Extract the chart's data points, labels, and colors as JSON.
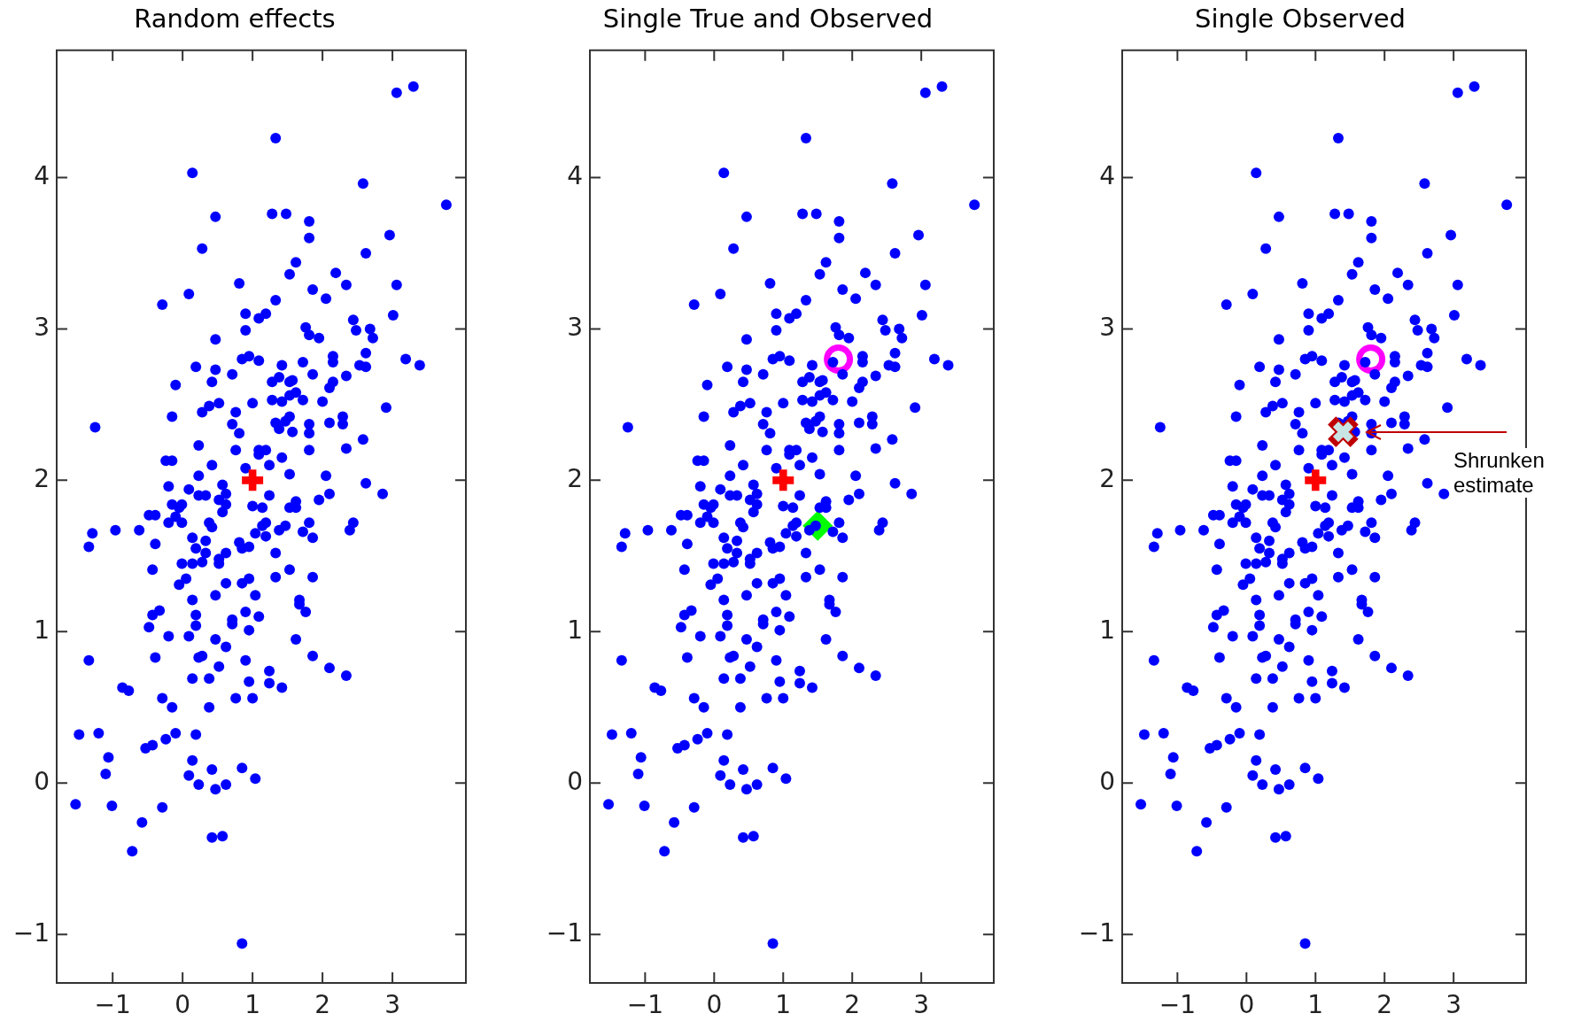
{
  "chart_data": [
    {
      "type": "scatter",
      "title": "Random effects",
      "xlim": [
        -1.8,
        4.05
      ],
      "ylim": [
        -1.32,
        4.84
      ],
      "xticks": [
        -1,
        0,
        1,
        2,
        3
      ],
      "yticks": [
        -1,
        0,
        1,
        2,
        3,
        4
      ],
      "series": [
        {
          "color": "#0000ff",
          "marker": "circle",
          "x": [
            3.3,
            3.06,
            1.33,
            0.14,
            2.58,
            3.77,
            0.47,
            1.28,
            1.48,
            1.81,
            1.81,
            2.96,
            0.28,
            2.62,
            1.62,
            1.53,
            2.19,
            0.81,
            2.34,
            3.06,
            0.09,
            1.86,
            2.05,
            -0.29,
            1.33,
            0.9,
            1.19,
            1.09,
            3.01,
            2.44,
            1.76,
            0.9,
            2.48,
            2.68,
            0.47,
            1.81,
            1.95,
            2.72,
            2.62,
            2.15,
            2.15,
            0.95,
            0.85,
            1.09,
            1.42,
            1.72,
            3.19,
            3.39,
            2.53,
            2.62,
            0.19,
            0.47,
            0.71,
            1.86,
            2.34,
            -0.1,
            0.42,
            1.28,
            1.38,
            1.53,
            1.57,
            2.15,
            2.1,
            1.53,
            1.62,
            1.28,
            1.42,
            1.72,
            2.0,
            0.38,
            0.52,
            1.0,
            0.28,
            0.76,
            2.91,
            -0.15,
            1.53,
            2.29,
            -1.25,
            0.71,
            1.33,
            1.47,
            1.38,
            1.57,
            1.81,
            1.81,
            2.1,
            2.29,
            0.81,
            2.58,
            0.23,
            0.76,
            1.09,
            1.19,
            1.09,
            1.81,
            2.34,
            1.42,
            -0.24,
            -0.15,
            0.42,
            0.9,
            1.24,
            0.23,
            1.53,
            2.05,
            2.62,
            -0.2,
            0.09,
            0.57,
            0.62,
            0.23,
            0.33,
            1.24,
            2.1,
            2.86,
            0.52,
            0.62,
            -0.15,
            -0.01,
            -0.05,
            1.95,
            1.62,
            1.0,
            1.14,
            1.53,
            1.62,
            0.57,
            -0.48,
            -0.39,
            -0.1,
            -0.2,
            -0.01,
            0.38,
            0.42,
            1.14,
            1.19,
            1.38,
            1.47,
            1.81,
            2.44,
            2.39,
            -0.96,
            -0.62,
            -1.29,
            -1.34,
            -0.39,
            0.14,
            0.33,
            1.04,
            1.19,
            1.72,
            1.86,
            0.19,
            0.33,
            0.62,
            0.81,
            0.85,
            0.95,
            1.33,
            -0.01,
            0.14,
            0.28,
            0.52,
            0.52,
            -0.43,
            1.53,
            0.05,
            -0.05,
            0.62,
            0.85,
            0.95,
            1.33,
            1.86,
            0.14,
            0.47,
            1.04,
            1.67,
            1.67,
            -0.33,
            -0.43,
            0.19,
            0.9,
            1.09,
            1.76,
            0.71,
            0.71,
            -0.48,
            0.19,
            0.95,
            -0.2,
            0.09,
            0.47,
            1.62,
            0.62,
            -1.34,
            -0.39,
            0.23,
            0.28,
            0.9,
            1.86,
            0.52,
            1.24,
            2.1,
            2.34,
            0.14,
            0.38,
            0.95,
            1.24,
            1.42,
            -0.86,
            -0.77,
            -0.29,
            -0.15,
            0.38,
            0.76,
            1.0,
            -1.48,
            -1.2,
            -0.1,
            0.19,
            -0.24,
            -0.53,
            -0.43,
            -1.06,
            0.14,
            0.42,
            0.85,
            -1.1,
            0.09,
            1.04,
            0.23,
            0.62,
            0.47,
            -1.53,
            -1.01,
            -0.29,
            -0.58,
            0.42,
            0.57,
            -0.72,
            0.85
          ],
          "values": [
            4.6,
            4.56,
            4.26,
            4.03,
            3.96,
            3.82,
            3.74,
            3.76,
            3.76,
            3.71,
            3.6,
            3.62,
            3.53,
            3.5,
            3.44,
            3.36,
            3.37,
            3.3,
            3.29,
            3.29,
            3.23,
            3.26,
            3.2,
            3.16,
            3.19,
            3.1,
            3.1,
            3.07,
            3.09,
            3.06,
            3.01,
            2.99,
            2.99,
            3.0,
            2.93,
            2.96,
            2.94,
            2.94,
            2.84,
            2.82,
            2.78,
            2.82,
            2.8,
            2.79,
            2.76,
            2.78,
            2.8,
            2.76,
            2.76,
            2.75,
            2.75,
            2.73,
            2.7,
            2.7,
            2.69,
            2.63,
            2.65,
            2.65,
            2.68,
            2.65,
            2.66,
            2.65,
            2.61,
            2.56,
            2.58,
            2.53,
            2.52,
            2.53,
            2.52,
            2.49,
            2.51,
            2.51,
            2.45,
            2.45,
            2.48,
            2.42,
            2.42,
            2.42,
            2.35,
            2.37,
            2.38,
            2.39,
            2.34,
            2.32,
            2.37,
            2.31,
            2.38,
            2.37,
            2.31,
            2.27,
            2.23,
            2.2,
            2.2,
            2.2,
            2.17,
            2.2,
            2.21,
            2.15,
            2.13,
            2.13,
            2.1,
            2.08,
            2.1,
            2.03,
            2.04,
            2.03,
            1.98,
            1.96,
            1.94,
            1.97,
            1.91,
            1.9,
            1.9,
            1.9,
            1.91,
            1.91,
            1.87,
            1.84,
            1.84,
            1.84,
            1.82,
            1.87,
            1.86,
            1.83,
            1.82,
            1.82,
            1.82,
            1.79,
            1.77,
            1.77,
            1.76,
            1.72,
            1.72,
            1.72,
            1.69,
            1.7,
            1.72,
            1.67,
            1.7,
            1.72,
            1.72,
            1.67,
            1.67,
            1.67,
            1.65,
            1.56,
            1.58,
            1.62,
            1.6,
            1.65,
            1.63,
            1.66,
            1.62,
            1.55,
            1.52,
            1.52,
            1.59,
            1.55,
            1.56,
            1.52,
            1.45,
            1.45,
            1.46,
            1.48,
            1.45,
            1.41,
            1.41,
            1.35,
            1.31,
            1.32,
            1.32,
            1.35,
            1.36,
            1.36,
            1.21,
            1.24,
            1.24,
            1.21,
            1.18,
            1.14,
            1.11,
            1.11,
            1.13,
            1.1,
            1.13,
            1.08,
            1.05,
            1.03,
            1.04,
            1.01,
            0.97,
            0.97,
            0.95,
            0.95,
            0.9,
            0.81,
            0.83,
            0.83,
            0.84,
            0.81,
            0.84,
            0.77,
            0.74,
            0.76,
            0.71,
            0.69,
            0.69,
            0.67,
            0.66,
            0.63,
            0.63,
            0.61,
            0.56,
            0.5,
            0.5,
            0.56,
            0.56,
            0.32,
            0.33,
            0.33,
            0.32,
            0.29,
            0.23,
            0.25,
            0.17,
            0.15,
            0.09,
            0.1,
            0.06,
            0.05,
            0.03,
            -0.01,
            -0.01,
            -0.04,
            -0.14,
            -0.15,
            -0.16,
            -0.26,
            -0.36,
            -0.35,
            -0.45,
            -1.06
          ]
        },
        {
          "color": "#ff0000",
          "marker": "cross",
          "x": [
            1.0
          ],
          "values": [
            2.0
          ]
        }
      ]
    },
    {
      "type": "scatter",
      "title": "Single True and Observed",
      "xlim": [
        -1.8,
        4.05
      ],
      "ylim": [
        -1.32,
        4.84
      ],
      "xticks": [
        -1,
        0,
        1,
        2,
        3
      ],
      "yticks": [
        -1,
        0,
        1,
        2,
        3,
        4
      ],
      "series": [
        {
          "color": "#0000ff",
          "marker": "circle",
          "x": [
            3.3,
            3.06,
            1.33,
            0.14,
            2.58,
            3.77,
            0.47,
            1.28,
            1.48,
            1.81,
            1.81,
            2.96,
            0.28,
            2.62,
            1.62,
            1.53,
            2.19,
            0.81,
            2.34,
            3.06,
            0.09,
            1.86,
            2.05,
            -0.29,
            1.33,
            0.9,
            1.19,
            1.09,
            3.01,
            2.44,
            1.76,
            0.9,
            2.48,
            2.68,
            0.47,
            1.81,
            1.95,
            2.72,
            2.62,
            2.15,
            2.15,
            0.95,
            0.85,
            1.09,
            1.42,
            1.72,
            3.19,
            3.39,
            2.53,
            2.62,
            0.19,
            0.47,
            0.71,
            1.86,
            2.34,
            -0.1,
            0.42,
            1.28,
            1.38,
            1.53,
            1.57,
            2.15,
            2.1,
            1.53,
            1.62,
            1.28,
            1.42,
            1.72,
            2.0,
            0.38,
            0.52,
            1.0,
            0.28,
            0.76,
            2.91,
            -0.15,
            1.53,
            2.29,
            -1.25,
            0.71,
            1.33,
            1.47,
            1.38,
            1.57,
            1.81,
            1.81,
            2.1,
            2.29,
            0.81,
            2.58,
            0.23,
            0.76,
            1.09,
            1.19,
            1.09,
            1.81,
            2.34,
            1.42,
            -0.24,
            -0.15,
            0.42,
            0.9,
            1.24,
            0.23,
            1.53,
            2.05,
            2.62,
            -0.2,
            0.09,
            0.57,
            0.62,
            0.23,
            0.33,
            1.24,
            2.1,
            2.86,
            0.52,
            0.62,
            -0.15,
            -0.01,
            -0.05,
            1.95,
            1.62,
            1.0,
            1.14,
            1.53,
            1.62,
            0.57,
            -0.48,
            -0.39,
            -0.1,
            -0.2,
            -0.01,
            0.38,
            0.42,
            1.14,
            1.19,
            1.38,
            1.47,
            1.81,
            2.44,
            2.39,
            -0.96,
            -0.62,
            -1.29,
            -1.34,
            -0.39,
            0.14,
            0.33,
            1.04,
            1.19,
            1.72,
            1.86,
            0.19,
            0.33,
            0.62,
            0.81,
            0.85,
            0.95,
            1.33,
            -0.01,
            0.14,
            0.28,
            0.52,
            0.52,
            -0.43,
            1.53,
            0.05,
            -0.05,
            0.62,
            0.85,
            0.95,
            1.33,
            1.86,
            0.14,
            0.47,
            1.04,
            1.67,
            1.67,
            -0.33,
            -0.43,
            0.19,
            0.9,
            1.09,
            1.76,
            0.71,
            0.71,
            -0.48,
            0.19,
            0.95,
            -0.2,
            0.09,
            0.47,
            1.62,
            0.62,
            -1.34,
            -0.39,
            0.23,
            0.28,
            0.9,
            1.86,
            0.52,
            1.24,
            2.1,
            2.34,
            0.14,
            0.38,
            0.95,
            1.24,
            1.42,
            -0.86,
            -0.77,
            -0.29,
            -0.15,
            0.38,
            0.76,
            1.0,
            -1.48,
            -1.2,
            -0.1,
            0.19,
            -0.24,
            -0.53,
            -0.43,
            -1.06,
            0.14,
            0.42,
            0.85,
            -1.1,
            0.09,
            1.04,
            0.23,
            0.62,
            0.47,
            -1.53,
            -1.01,
            -0.29,
            -0.58,
            0.42,
            0.57,
            -0.72,
            0.85
          ],
          "values": [
            4.6,
            4.56,
            4.26,
            4.03,
            3.96,
            3.82,
            3.74,
            3.76,
            3.76,
            3.71,
            3.6,
            3.62,
            3.53,
            3.5,
            3.44,
            3.36,
            3.37,
            3.3,
            3.29,
            3.29,
            3.23,
            3.26,
            3.2,
            3.16,
            3.19,
            3.1,
            3.1,
            3.07,
            3.09,
            3.06,
            3.01,
            2.99,
            2.99,
            3.0,
            2.93,
            2.96,
            2.94,
            2.94,
            2.84,
            2.82,
            2.78,
            2.82,
            2.8,
            2.79,
            2.76,
            2.78,
            2.8,
            2.76,
            2.76,
            2.75,
            2.75,
            2.73,
            2.7,
            2.7,
            2.69,
            2.63,
            2.65,
            2.65,
            2.68,
            2.65,
            2.66,
            2.65,
            2.61,
            2.56,
            2.58,
            2.53,
            2.52,
            2.53,
            2.52,
            2.49,
            2.51,
            2.51,
            2.45,
            2.45,
            2.48,
            2.42,
            2.42,
            2.42,
            2.35,
            2.37,
            2.38,
            2.39,
            2.34,
            2.32,
            2.37,
            2.31,
            2.38,
            2.37,
            2.31,
            2.27,
            2.23,
            2.2,
            2.2,
            2.2,
            2.17,
            2.2,
            2.21,
            2.15,
            2.13,
            2.13,
            2.1,
            2.08,
            2.1,
            2.03,
            2.04,
            2.03,
            1.98,
            1.96,
            1.94,
            1.97,
            1.91,
            1.9,
            1.9,
            1.9,
            1.91,
            1.91,
            1.87,
            1.84,
            1.84,
            1.84,
            1.82,
            1.87,
            1.86,
            1.83,
            1.82,
            1.82,
            1.82,
            1.79,
            1.77,
            1.77,
            1.76,
            1.72,
            1.72,
            1.72,
            1.69,
            1.7,
            1.72,
            1.67,
            1.7,
            1.72,
            1.72,
            1.67,
            1.67,
            1.67,
            1.65,
            1.56,
            1.58,
            1.62,
            1.6,
            1.65,
            1.63,
            1.66,
            1.62,
            1.55,
            1.52,
            1.52,
            1.59,
            1.55,
            1.56,
            1.52,
            1.45,
            1.45,
            1.46,
            1.48,
            1.45,
            1.41,
            1.41,
            1.35,
            1.31,
            1.32,
            1.32,
            1.35,
            1.36,
            1.36,
            1.21,
            1.24,
            1.24,
            1.21,
            1.18,
            1.14,
            1.11,
            1.11,
            1.13,
            1.1,
            1.13,
            1.08,
            1.05,
            1.03,
            1.04,
            1.01,
            0.97,
            0.97,
            0.95,
            0.95,
            0.9,
            0.81,
            0.83,
            0.83,
            0.84,
            0.81,
            0.84,
            0.77,
            0.74,
            0.76,
            0.71,
            0.69,
            0.69,
            0.67,
            0.66,
            0.63,
            0.63,
            0.61,
            0.56,
            0.5,
            0.5,
            0.56,
            0.56,
            0.32,
            0.33,
            0.33,
            0.32,
            0.29,
            0.23,
            0.25,
            0.17,
            0.15,
            0.09,
            0.1,
            0.06,
            0.05,
            0.03,
            -0.01,
            -0.01,
            -0.04,
            -0.14,
            -0.15,
            -0.16,
            -0.26,
            -0.36,
            -0.35,
            -0.45,
            -1.06
          ]
        },
        {
          "color": "#ff0000",
          "marker": "cross",
          "x": [
            1.0
          ],
          "values": [
            2.0
          ]
        },
        {
          "color": "#ff00ff",
          "marker": "circle",
          "x": [
            1.8
          ],
          "values": [
            2.8
          ]
        },
        {
          "color": "#00ff00",
          "marker": "diamond",
          "x": [
            1.5
          ],
          "values": [
            1.7
          ]
        }
      ]
    },
    {
      "type": "scatter",
      "title": "Single Observed",
      "xlim": [
        -1.8,
        4.05
      ],
      "ylim": [
        -1.32,
        4.84
      ],
      "xticks": [
        -1,
        0,
        1,
        2,
        3
      ],
      "yticks": [
        -1,
        0,
        1,
        2,
        3,
        4
      ],
      "annotations": [
        {
          "text": "Shrunken estimate",
          "x": 1.74,
          "y": 2.32
        }
      ],
      "series": [
        {
          "color": "#0000ff",
          "marker": "circle",
          "x": [
            3.3,
            3.06,
            1.33,
            0.14,
            2.58,
            3.77,
            0.47,
            1.28,
            1.48,
            1.81,
            1.81,
            2.96,
            0.28,
            2.62,
            1.62,
            1.53,
            2.19,
            0.81,
            2.34,
            3.06,
            0.09,
            1.86,
            2.05,
            -0.29,
            1.33,
            0.9,
            1.19,
            1.09,
            3.01,
            2.44,
            1.76,
            0.9,
            2.48,
            2.68,
            0.47,
            1.81,
            1.95,
            2.72,
            2.62,
            2.15,
            2.15,
            0.95,
            0.85,
            1.09,
            1.42,
            1.72,
            3.19,
            3.39,
            2.53,
            2.62,
            0.19,
            0.47,
            0.71,
            1.86,
            2.34,
            -0.1,
            0.42,
            1.28,
            1.38,
            1.53,
            1.57,
            2.15,
            2.1,
            1.53,
            1.62,
            1.28,
            1.42,
            1.72,
            2.0,
            0.38,
            0.52,
            1.0,
            0.28,
            0.76,
            2.91,
            -0.15,
            1.53,
            2.29,
            -1.25,
            0.71,
            1.33,
            1.47,
            null,
            1.57,
            1.81,
            1.81,
            2.1,
            2.29,
            0.81,
            2.58,
            0.23,
            0.76,
            1.09,
            1.19,
            1.09,
            1.81,
            2.34,
            1.42,
            -0.24,
            -0.15,
            0.42,
            0.9,
            1.24,
            0.23,
            1.53,
            2.05,
            2.62,
            -0.2,
            0.09,
            0.57,
            0.62,
            0.23,
            0.33,
            1.24,
            2.1,
            2.86,
            0.52,
            0.62,
            -0.15,
            -0.01,
            -0.05,
            1.95,
            1.62,
            1.0,
            1.14,
            1.53,
            1.62,
            0.57,
            -0.48,
            -0.39,
            -0.1,
            -0.2,
            -0.01,
            0.38,
            0.42,
            1.14,
            1.19,
            1.38,
            1.47,
            1.81,
            2.44,
            2.39,
            -0.96,
            -0.62,
            -1.29,
            -1.34,
            -0.39,
            0.14,
            0.33,
            1.04,
            1.19,
            1.72,
            1.86,
            0.19,
            0.33,
            0.62,
            0.81,
            0.85,
            0.95,
            1.33,
            -0.01,
            0.14,
            0.28,
            0.52,
            0.52,
            -0.43,
            1.53,
            0.05,
            -0.05,
            0.62,
            0.85,
            0.95,
            1.33,
            1.86,
            0.14,
            0.47,
            1.04,
            1.67,
            1.67,
            -0.33,
            -0.43,
            0.19,
            0.9,
            1.09,
            1.76,
            0.71,
            0.71,
            -0.48,
            0.19,
            0.95,
            -0.2,
            0.09,
            0.47,
            1.62,
            0.62,
            -1.34,
            -0.39,
            0.23,
            0.28,
            0.9,
            1.86,
            0.52,
            1.24,
            2.1,
            2.34,
            0.14,
            0.38,
            0.95,
            1.24,
            1.42,
            -0.86,
            -0.77,
            -0.29,
            -0.15,
            0.38,
            0.76,
            1.0,
            -1.48,
            -1.2,
            -0.1,
            0.19,
            -0.24,
            -0.53,
            -0.43,
            -1.06,
            0.14,
            0.42,
            0.85,
            -1.1,
            0.09,
            1.04,
            0.23,
            0.62,
            0.47,
            -1.53,
            -1.01,
            -0.29,
            -0.58,
            0.42,
            0.57,
            -0.72,
            0.85
          ],
          "values": [
            4.6,
            4.56,
            4.26,
            4.03,
            3.96,
            3.82,
            3.74,
            3.76,
            3.76,
            3.71,
            3.6,
            3.62,
            3.53,
            3.5,
            3.44,
            3.36,
            3.37,
            3.3,
            3.29,
            3.29,
            3.23,
            3.26,
            3.2,
            3.16,
            3.19,
            3.1,
            3.1,
            3.07,
            3.09,
            3.06,
            3.01,
            2.99,
            2.99,
            3.0,
            2.93,
            2.96,
            2.94,
            2.94,
            2.84,
            2.82,
            2.78,
            2.82,
            2.8,
            2.79,
            2.76,
            2.78,
            2.8,
            2.76,
            2.76,
            2.75,
            2.75,
            2.73,
            2.7,
            2.7,
            2.69,
            2.63,
            2.65,
            2.65,
            2.68,
            2.65,
            2.66,
            2.65,
            2.61,
            2.56,
            2.58,
            2.53,
            2.52,
            2.53,
            2.52,
            2.49,
            2.51,
            2.51,
            2.45,
            2.45,
            2.48,
            2.42,
            2.42,
            2.42,
            2.35,
            2.37,
            2.38,
            2.39,
            null,
            2.32,
            2.37,
            2.31,
            2.38,
            2.37,
            2.31,
            2.27,
            2.23,
            2.2,
            2.2,
            2.2,
            2.17,
            2.2,
            2.21,
            2.15,
            2.13,
            2.13,
            2.1,
            2.08,
            2.1,
            2.03,
            2.04,
            2.03,
            1.98,
            1.96,
            1.94,
            1.97,
            1.91,
            1.9,
            1.9,
            1.9,
            1.91,
            1.91,
            1.87,
            1.84,
            1.84,
            1.84,
            1.82,
            1.87,
            1.86,
            1.83,
            1.82,
            1.82,
            1.82,
            1.79,
            1.77,
            1.77,
            1.76,
            1.72,
            1.72,
            1.72,
            1.69,
            1.7,
            1.72,
            1.67,
            1.7,
            1.72,
            1.72,
            1.67,
            1.67,
            1.67,
            1.65,
            1.56,
            1.58,
            1.62,
            1.6,
            1.65,
            1.63,
            1.66,
            1.62,
            1.55,
            1.52,
            1.52,
            1.59,
            1.55,
            1.56,
            1.52,
            1.45,
            1.45,
            1.46,
            1.48,
            1.45,
            1.41,
            1.41,
            1.35,
            1.31,
            1.32,
            1.32,
            1.35,
            1.36,
            1.36,
            1.21,
            1.24,
            1.24,
            1.21,
            1.18,
            1.14,
            1.11,
            1.11,
            1.13,
            1.1,
            1.13,
            1.08,
            1.05,
            1.03,
            1.04,
            1.01,
            0.97,
            0.97,
            0.95,
            0.95,
            0.9,
            0.81,
            0.83,
            0.83,
            0.84,
            0.81,
            0.84,
            0.77,
            0.74,
            0.76,
            0.71,
            0.69,
            0.69,
            0.67,
            0.66,
            0.63,
            0.63,
            0.61,
            0.56,
            0.5,
            0.5,
            0.56,
            0.56,
            0.32,
            0.33,
            0.33,
            0.32,
            0.29,
            0.23,
            0.25,
            0.17,
            0.15,
            0.09,
            0.1,
            0.06,
            0.05,
            0.03,
            -0.01,
            -0.01,
            -0.04,
            -0.14,
            -0.15,
            -0.16,
            -0.26,
            -0.36,
            -0.35,
            -0.45,
            -1.06
          ]
        },
        {
          "color": "#ff0000",
          "marker": "cross",
          "x": [
            1.0
          ],
          "values": [
            2.0
          ]
        },
        {
          "color": "#ff00ff",
          "marker": "circle",
          "x": [
            1.8
          ],
          "values": [
            2.8
          ]
        },
        {
          "color": "#c00000",
          "marker": "x",
          "x": [
            1.4
          ],
          "values": [
            2.32
          ]
        }
      ]
    }
  ]
}
